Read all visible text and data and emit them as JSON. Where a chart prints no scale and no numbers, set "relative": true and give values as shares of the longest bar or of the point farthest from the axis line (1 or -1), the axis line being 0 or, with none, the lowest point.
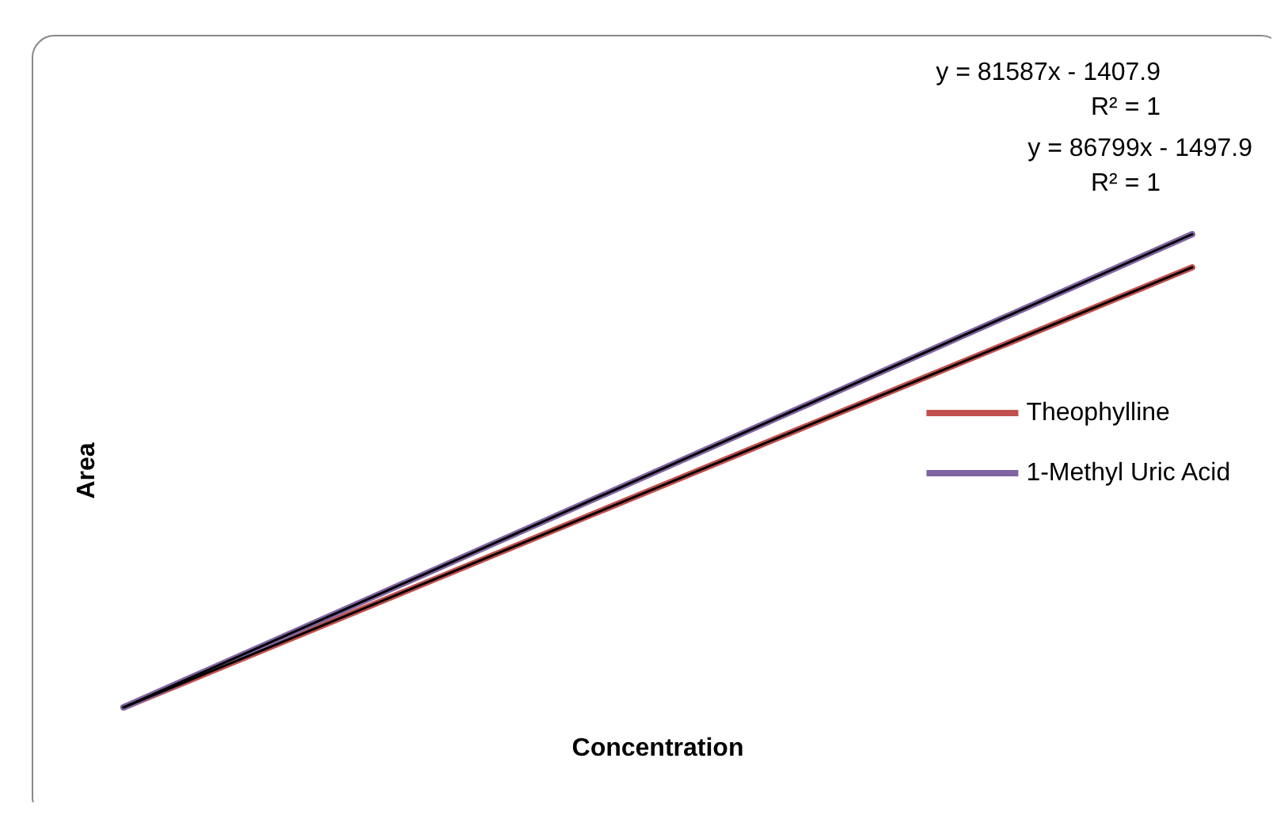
{
  "chart_data": {
    "type": "line",
    "relative": true,
    "xlabel": "Concentration",
    "ylabel": "Area",
    "categories": [
      null,
      null
    ],
    "series": [
      {
        "name": "Theophylline",
        "color": "#c0504d",
        "values": [
          0,
          0.93
        ]
      },
      {
        "name": "1-Methyl Uric Acid",
        "color": "#8064a2",
        "values": [
          0,
          1
        ]
      },
      {
        "type": "line",
        "color": "#000000",
        "values": [
          0,
          0.93
        ]
      },
      {
        "type": "line",
        "color": "#000000",
        "values": [
          0,
          1
        ]
      }
    ],
    "annotations": [
      "y = 81587x - 1407.9",
      "R² = 1",
      "y = 86799x - 1497.9",
      "R² = 1"
    ],
    "legend": "right",
    "grid": false,
    "marker": "none"
  }
}
